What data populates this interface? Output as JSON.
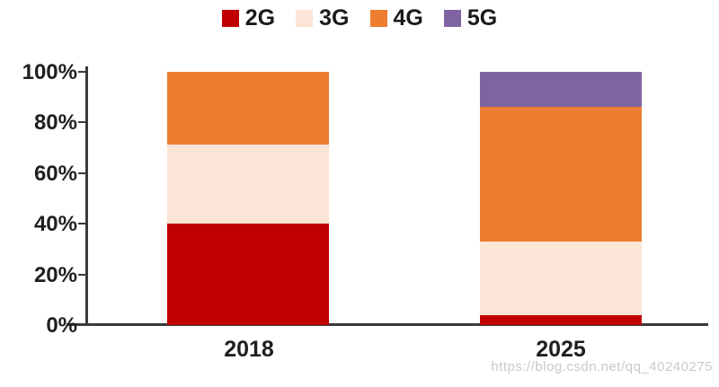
{
  "chart_data": {
    "type": "bar",
    "stacked": true,
    "percent_stacked": true,
    "title": "",
    "xlabel": "",
    "ylabel": "",
    "categories": [
      "2018",
      "2025"
    ],
    "series": [
      {
        "name": "2G",
        "color": "#c00000",
        "values": [
          40,
          4
        ]
      },
      {
        "name": "3G",
        "color": "#fbe5d6",
        "values": [
          31,
          29
        ]
      },
      {
        "name": "4G",
        "color": "#ed7d31",
        "values": [
          29,
          53
        ]
      },
      {
        "name": "5G",
        "color": "#8064a2",
        "values": [
          0,
          14
        ]
      }
    ],
    "y_axis": {
      "min": 0,
      "max": 100,
      "step": 20,
      "unit": "%",
      "tick_labels": [
        "0%",
        "20%",
        "40%",
        "60%",
        "80%",
        "100%"
      ]
    },
    "legend_position": "top",
    "grid": false,
    "axis_color": "#3a3a3a",
    "text_color": "#1f1f1f",
    "background_color": "#ffffff"
  },
  "watermark": "https://blog.csdn.net/qq_40240275"
}
